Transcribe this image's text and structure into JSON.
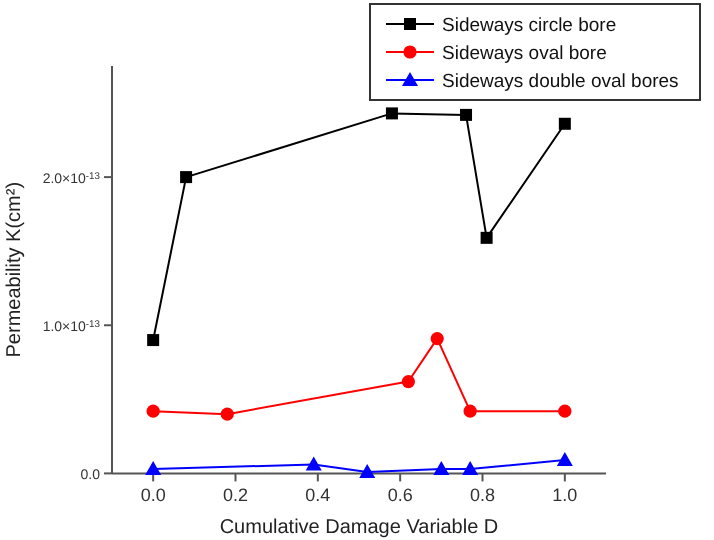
{
  "chart_data": {
    "type": "line",
    "xlabel": "Cumulative Damage Variable D",
    "ylabel": "Permeability K(cm²)",
    "xlim": [
      -0.1,
      1.1
    ],
    "ylim": [
      0,
      2.75e-13
    ],
    "xticks": [
      {
        "value": 0,
        "label": "0.0"
      },
      {
        "value": 0.2,
        "label": "0.2"
      },
      {
        "value": 0.4,
        "label": "0.4"
      },
      {
        "value": 0.6,
        "label": "0.6"
      },
      {
        "value": 0.8,
        "label": "0.8"
      },
      {
        "value": 1,
        "label": "1.0"
      }
    ],
    "yticks": [
      {
        "value": 0,
        "label": "0.0"
      },
      {
        "value": 1e-13,
        "label": "1.0×10$^{-13}$"
      },
      {
        "value": 2e-13,
        "label": "2.0×10$^{-13}$"
      }
    ],
    "legend": "top right",
    "grid": false,
    "series": [
      {
        "name": "Sideways circle bore",
        "color": "#000000",
        "marker": "square",
        "x": [
          0,
          0.08,
          0.58,
          0.76,
          0.81,
          1.0
        ],
        "values": [
          9e-14,
          2e-13,
          2.43e-13,
          2.42e-13,
          1.59e-13,
          2.36e-13
        ]
      },
      {
        "name": "Sideways oval bore",
        "color": "#ff0000",
        "marker": "circle",
        "x": [
          0,
          0.18,
          0.62,
          0.69,
          0.77,
          1.0
        ],
        "values": [
          4.2e-14,
          4e-14,
          6.2e-14,
          9.1e-14,
          4.2e-14,
          4.2e-14
        ]
      },
      {
        "name": "Sideways double oval bores",
        "color": "#0000ff",
        "marker": "triangle",
        "x": [
          0,
          0.39,
          0.52,
          0.7,
          0.77,
          1.0
        ],
        "values": [
          3e-15,
          6e-15,
          1e-15,
          3e-15,
          3e-15,
          9e-15
        ]
      }
    ]
  }
}
